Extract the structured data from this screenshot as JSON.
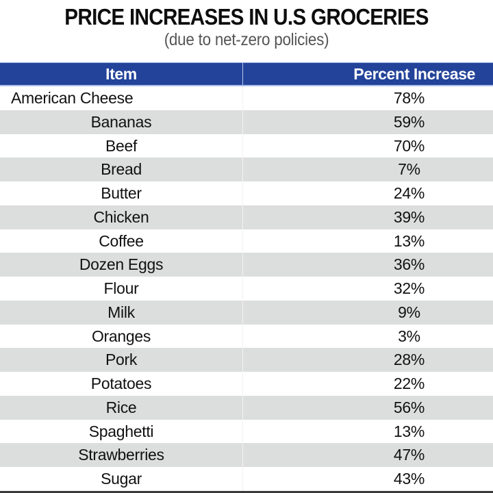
{
  "title": "PRICE INCREASES IN U.S GROCERIES",
  "subtitle": "(due to net-zero policies)",
  "table": {
    "headers": [
      "Item",
      "Percent Increase"
    ],
    "rows": [
      {
        "item": "American Cheese",
        "increase": "78%"
      },
      {
        "item": "Bananas",
        "increase": "59%"
      },
      {
        "item": "Beef",
        "increase": "70%"
      },
      {
        "item": "Bread",
        "increase": "7%"
      },
      {
        "item": "Butter",
        "increase": "24%"
      },
      {
        "item": "Chicken",
        "increase": "39%"
      },
      {
        "item": "Coffee",
        "increase": "13%"
      },
      {
        "item": "Dozen Eggs",
        "increase": "36%"
      },
      {
        "item": "Flour",
        "increase": "32%"
      },
      {
        "item": "Milk",
        "increase": "9%"
      },
      {
        "item": "Oranges",
        "increase": "3%"
      },
      {
        "item": "Pork",
        "increase": "28%"
      },
      {
        "item": "Potatoes",
        "increase": "22%"
      },
      {
        "item": "Rice",
        "increase": "56%"
      },
      {
        "item": "Spaghetti",
        "increase": "13%"
      },
      {
        "item": "Strawberries",
        "increase": "47%"
      },
      {
        "item": "Sugar",
        "increase": "43%"
      }
    ]
  },
  "colors": {
    "header_bg": "#23439a",
    "header_text": "#ffffff",
    "alt_row_bg": "#dcdddd",
    "row_bg": "#ffffff"
  }
}
